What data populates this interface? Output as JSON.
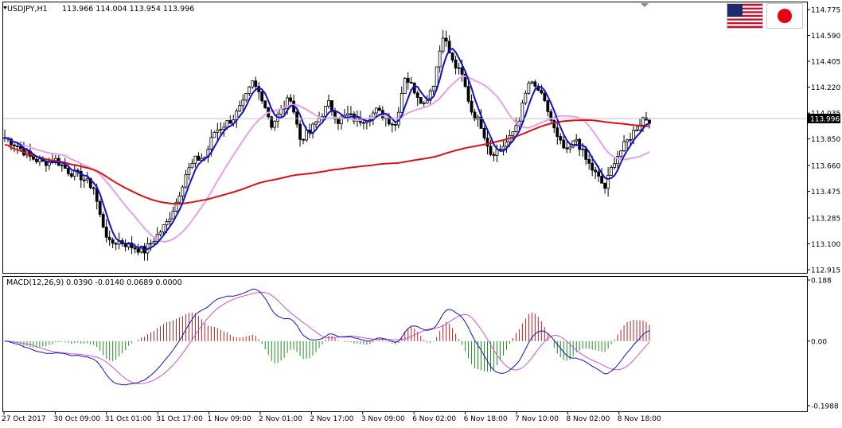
{
  "header": {
    "symbol": "USDJPY,H1",
    "ohlc": "113.966 114.004 113.954 113.996"
  },
  "macd_header": {
    "label": "MACD(12,26,9) 0.0390 -0.0140 0.0689 0.0000"
  },
  "flags": [
    {
      "name": "us-flag-icon"
    },
    {
      "name": "japan-flag-icon"
    }
  ],
  "colors": {
    "candle": "#000000",
    "fast_ma": "#1111cc",
    "slow_ma": "#e8a0e8",
    "long_ma": "#dd1111",
    "hist_pos": "#b22222",
    "hist_neg": "#228b22",
    "macd_line": "#1111cc",
    "signal_line": "#cc55cc"
  },
  "chart_data": [
    {
      "type": "candlestick",
      "title": "USDJPY,H1",
      "ylim": [
        112.915,
        114.775
      ],
      "y_ticks": [
        "114.775",
        "114.590",
        "114.405",
        "114.220",
        "114.035",
        "113.850",
        "113.660",
        "113.475",
        "113.285",
        "113.100",
        "112.915"
      ],
      "current_price": "113.996",
      "x_ticks": [
        "27 Oct 2017",
        "30 Oct 09:00",
        "31 Oct 01:00",
        "31 Oct 17:00",
        "1 Nov 09:00",
        "2 Nov 01:00",
        "2 Nov 17:00",
        "3 Nov 09:00",
        "6 Nov 02:00",
        "6 Nov 18:00",
        "7 Nov 10:00",
        "8 Nov 02:00",
        "8 Nov 18:00"
      ],
      "close_path": [
        [
          0,
          113.86
        ],
        [
          4,
          113.8
        ],
        [
          8,
          113.72
        ],
        [
          12,
          113.68
        ],
        [
          16,
          113.7
        ],
        [
          20,
          113.62
        ],
        [
          24,
          113.58
        ],
        [
          28,
          113.5
        ],
        [
          30,
          113.3
        ],
        [
          33,
          113.1
        ],
        [
          36,
          113.12
        ],
        [
          40,
          113.08
        ],
        [
          44,
          113.05
        ],
        [
          48,
          113.16
        ],
        [
          51,
          113.25
        ],
        [
          54,
          113.4
        ],
        [
          57,
          113.6
        ],
        [
          60,
          113.7
        ],
        [
          63,
          113.72
        ],
        [
          66,
          113.9
        ],
        [
          69,
          113.95
        ],
        [
          72,
          114.0
        ],
        [
          75,
          114.1
        ],
        [
          78,
          114.25
        ],
        [
          81,
          114.15
        ],
        [
          84,
          113.95
        ],
        [
          87,
          114.05
        ],
        [
          90,
          114.15
        ],
        [
          93,
          113.85
        ],
        [
          96,
          113.9
        ],
        [
          99,
          114.0
        ],
        [
          102,
          114.1
        ],
        [
          105,
          113.98
        ],
        [
          108,
          114.02
        ],
        [
          111,
          113.98
        ],
        [
          114,
          114.0
        ],
        [
          117,
          114.05
        ],
        [
          120,
          114.0
        ],
        [
          123,
          113.95
        ],
        [
          126,
          114.3
        ],
        [
          129,
          114.2
        ],
        [
          132,
          114.1
        ],
        [
          135,
          114.25
        ],
        [
          138,
          114.6
        ],
        [
          141,
          114.4
        ],
        [
          144,
          114.3
        ],
        [
          147,
          114.05
        ],
        [
          150,
          113.95
        ],
        [
          153,
          113.75
        ],
        [
          156,
          113.78
        ],
        [
          159,
          113.85
        ],
        [
          162,
          114.0
        ],
        [
          165,
          114.25
        ],
        [
          168,
          114.2
        ],
        [
          171,
          114.05
        ],
        [
          174,
          113.85
        ],
        [
          177,
          113.75
        ],
        [
          180,
          113.85
        ],
        [
          183,
          113.7
        ],
        [
          186,
          113.6
        ],
        [
          189,
          113.5
        ],
        [
          192,
          113.7
        ],
        [
          195,
          113.8
        ],
        [
          198,
          113.9
        ],
        [
          201,
          114.0
        ],
        [
          203,
          113.99
        ]
      ]
    },
    {
      "type": "macd",
      "title": "MACD(12,26,9)",
      "ylim": [
        -0.1988,
        0.188
      ],
      "y_ticks": [
        "0.188",
        "0.00",
        "-0.1988"
      ],
      "values": {
        "macd": 0.039,
        "signal": -0.014,
        "histogram": 0.0689
      }
    }
  ]
}
